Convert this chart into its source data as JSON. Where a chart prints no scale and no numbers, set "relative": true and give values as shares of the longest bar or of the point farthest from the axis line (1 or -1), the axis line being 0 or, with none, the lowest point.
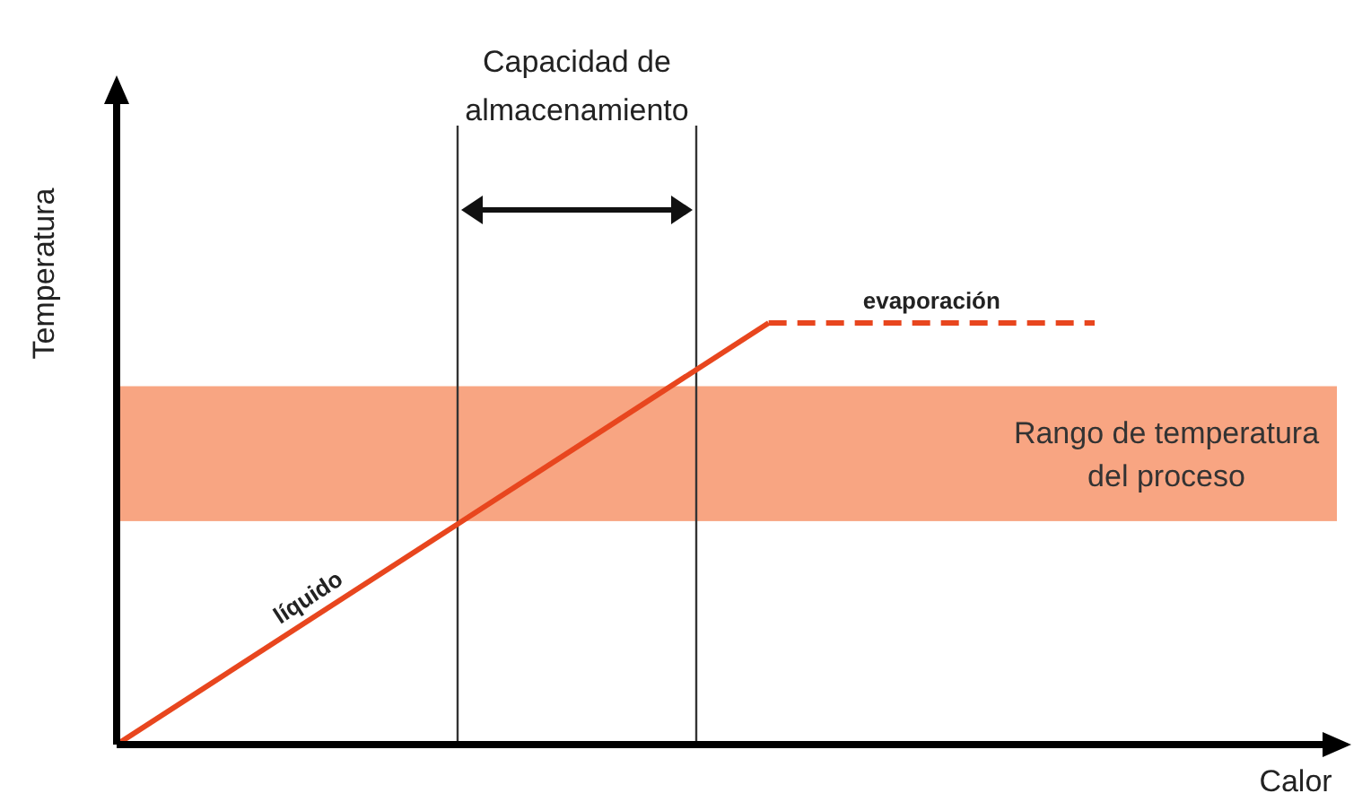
{
  "chart_data": {
    "type": "line",
    "relative": true,
    "xlabel": "Calor",
    "ylabel": "Temperatura",
    "line_style": "solid",
    "categories": [
      null,
      null,
      null,
      null
    ],
    "series": [
      {
        "name": "líquido",
        "color": "#e8461e",
        "values": [
          0,
          0.5,
          1,
          null
        ]
      },
      {
        "name": "evaporación",
        "color": "#e8461e",
        "values": [
          null,
          null,
          1,
          1
        ],
        "line_style": "dashed"
      }
    ],
    "bands": [
      {
        "axis": "y",
        "from": 0.53,
        "to": 0.85,
        "label": "Rango de temperatura del proceso",
        "color": "#f8a582"
      }
    ],
    "annotations": [
      "Capacidad de almacenamiento"
    ]
  }
}
